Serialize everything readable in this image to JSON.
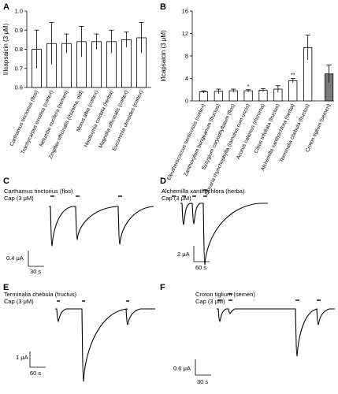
{
  "chart_data": [
    {
      "panel": "A",
      "type": "bar",
      "ylabel": "I/Icapsaicin (3 μM)",
      "ylim": [
        0.6,
        1.0
      ],
      "yticks": [
        "0.6",
        "0.7",
        "0.8",
        "0.9",
        "1.0"
      ],
      "categories": [
        "Carthamus tinctorius (flos)",
        "Trachycarpus excelsa (cortex)",
        "Nelumbo nucifera (semen)",
        "Zingiber officinalis (rhizoma, old)",
        "Morus alba (cortex)",
        "Houttuynia cordata (herba)",
        "Magnolia officinalis (cortex)",
        "Eucommia ulmoides (cortex)"
      ],
      "values": [
        0.8,
        0.83,
        0.83,
        0.84,
        0.84,
        0.84,
        0.85,
        0.86
      ],
      "errors": [
        0.1,
        0.11,
        0.05,
        0.08,
        0.04,
        0.06,
        0.04,
        0.08
      ]
    },
    {
      "panel": "B",
      "type": "bar",
      "ylabel": "I/Icapsaicin (3 μM)",
      "ylim": [
        0,
        16
      ],
      "yticks": [
        "0",
        "4",
        "8",
        "12",
        "16"
      ],
      "categories": [
        "Eleutherococcus senticosus (cortex)",
        "Zanthoxylum bungeanum (fructus)",
        "Syzygium caryophyllatum (flos)",
        "Uncaria rhynchophylla (ramulus cum uncis)",
        "Acorus calamus (rhizoma)",
        "Citrus trifoliata (fructus)",
        "Alchemilla xanthochlora (herba)",
        "Terminalia chebula (fructus)",
        "Croton tiglium (semen)"
      ],
      "values": [
        1.6,
        1.7,
        1.8,
        1.8,
        1.9,
        2.1,
        3.6,
        9.5,
        4.8
      ],
      "errors": [
        0.2,
        0.4,
        0.3,
        0.2,
        0.3,
        0.6,
        0.4,
        2.2,
        1.6
      ],
      "significance": [
        "",
        "",
        "",
        "*",
        "",
        "",
        "**",
        "",
        ""
      ],
      "highlight_color": "#7a7a7a"
    },
    {
      "panel": "C",
      "type": "line",
      "title": "Carthamus tinctorius (flos)",
      "stimulus_label": "Cap (3 μM)",
      "scale_y": "0.4 μA",
      "scale_x": "30 s"
    },
    {
      "panel": "D",
      "type": "line",
      "title": "Alchemilla xanthochlora (herba)",
      "stimulus_label": "Cap (3 μM)",
      "scale_y": "2 μA",
      "scale_x": "60 s"
    },
    {
      "panel": "E",
      "type": "line",
      "title": "Terminalia chebula (fructus)",
      "stimulus_label": "Cap (3 μM)",
      "scale_y": "1 μA",
      "scale_x": "60 s"
    },
    {
      "panel": "F",
      "type": "line",
      "title": "Croton tiglium (semen)",
      "stimulus_label": "Cap (3 μM)",
      "scale_y": "0.6 μA",
      "scale_x": "30 s"
    }
  ]
}
